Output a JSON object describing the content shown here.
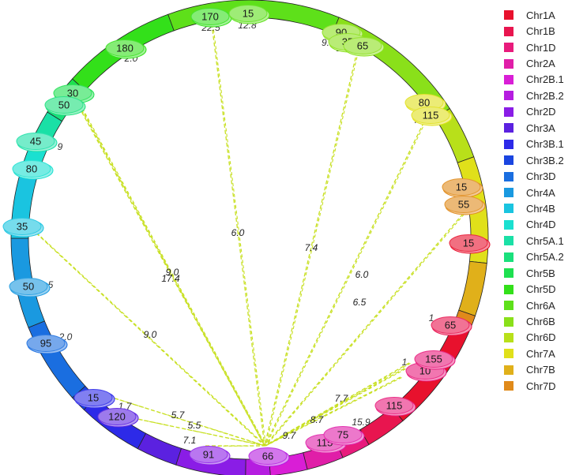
{
  "diagram": {
    "type": "circos",
    "link_color": "#c8e022",
    "chromosomes": [
      {
        "name": "Chr1A",
        "color": "#e8112d"
      },
      {
        "name": "Chr1B",
        "color": "#e8154f"
      },
      {
        "name": "Chr1D",
        "color": "#e81b7c"
      },
      {
        "name": "Chr2A",
        "color": "#e01ea8"
      },
      {
        "name": "Chr2B.1",
        "color": "#d91ed6"
      },
      {
        "name": "Chr2B.2",
        "color": "#b51de0"
      },
      {
        "name": "Chr2D",
        "color": "#8a1de6"
      },
      {
        "name": "Chr3A",
        "color": "#5b21e0"
      },
      {
        "name": "Chr3B.1",
        "color": "#2d2ae8"
      },
      {
        "name": "Chr3B.2",
        "color": "#1a45e0"
      },
      {
        "name": "Chr3D",
        "color": "#1a6ee0"
      },
      {
        "name": "Chr4A",
        "color": "#1a99e0"
      },
      {
        "name": "Chr4B",
        "color": "#1ac4e0"
      },
      {
        "name": "Chr4D",
        "color": "#1ae0d0"
      },
      {
        "name": "Chr5A.1",
        "color": "#1ae0a6"
      },
      {
        "name": "Chr5A.2",
        "color": "#1ae07c"
      },
      {
        "name": "Chr5B",
        "color": "#1ee050"
      },
      {
        "name": "Chr5D",
        "color": "#33e01a"
      },
      {
        "name": "Chr6A",
        "color": "#5ee01a"
      },
      {
        "name": "Chr6B",
        "color": "#8ae01a"
      },
      {
        "name": "Chr6D",
        "color": "#b8e01a"
      },
      {
        "name": "Chr7A",
        "color": "#e0e01a"
      },
      {
        "name": "Chr7B",
        "color": "#e0b01a"
      },
      {
        "name": "Chr7D",
        "color": "#e08a1a"
      }
    ],
    "markers": [
      {
        "label": "170",
        "chr": "Chr5D"
      },
      {
        "label": "15",
        "chr": "Chr6A"
      },
      {
        "label": "90",
        "chr": "Chr6B"
      },
      {
        "label": "35",
        "chr": "Chr6B"
      },
      {
        "label": "65",
        "chr": "Chr6B"
      },
      {
        "label": "180",
        "chr": "Chr5D"
      },
      {
        "label": "30",
        "chr": "Chr5B"
      },
      {
        "label": "50",
        "chr": "Chr5A.2"
      },
      {
        "label": "45",
        "chr": "Chr5A.1"
      },
      {
        "label": "80",
        "chr": "Chr4D"
      },
      {
        "label": "35",
        "chr": "Chr4B"
      },
      {
        "label": "50",
        "chr": "Chr4A"
      },
      {
        "label": "95",
        "chr": "Chr3D"
      },
      {
        "label": "15",
        "chr": "Chr3B.1"
      },
      {
        "label": "120",
        "chr": "Chr3A"
      },
      {
        "label": "91",
        "chr": "Chr2D"
      },
      {
        "label": "66",
        "chr": "Chr2B.2"
      },
      {
        "label": "115",
        "chr": "Chr2A"
      },
      {
        "label": "75",
        "chr": "Chr2A"
      },
      {
        "label": "115",
        "chr": "Chr1D"
      },
      {
        "label": "10",
        "chr": "Chr1D"
      },
      {
        "label": "155",
        "chr": "Chr1D"
      },
      {
        "label": "65",
        "chr": "Chr1B"
      },
      {
        "label": "15",
        "chr": "Chr1A"
      },
      {
        "label": "15",
        "chr": "Chr7D"
      },
      {
        "label": "55",
        "chr": "Chr7D"
      },
      {
        "label": "80",
        "chr": "Chr7A"
      },
      {
        "label": "115",
        "chr": "Chr7A"
      }
    ],
    "links": [
      {
        "weight": "6.0"
      },
      {
        "weight": "7.4"
      },
      {
        "weight": "6.0"
      },
      {
        "weight": "6.5"
      },
      {
        "weight": "9.0"
      },
      {
        "weight": "17.4"
      },
      {
        "weight": "9.0"
      },
      {
        "weight": "5.7"
      },
      {
        "weight": "5.5"
      },
      {
        "weight": "7.1"
      },
      {
        "weight": "7.7"
      },
      {
        "weight": "8.7"
      },
      {
        "weight": "9.7"
      }
    ],
    "fragment_labels": [
      "22.5",
      "12.8",
      "9.",
      "2.",
      "2.0",
      "9",
      "5",
      "2.0",
      "1.7",
      "15.9",
      "1",
      "1",
      "7"
    ]
  }
}
